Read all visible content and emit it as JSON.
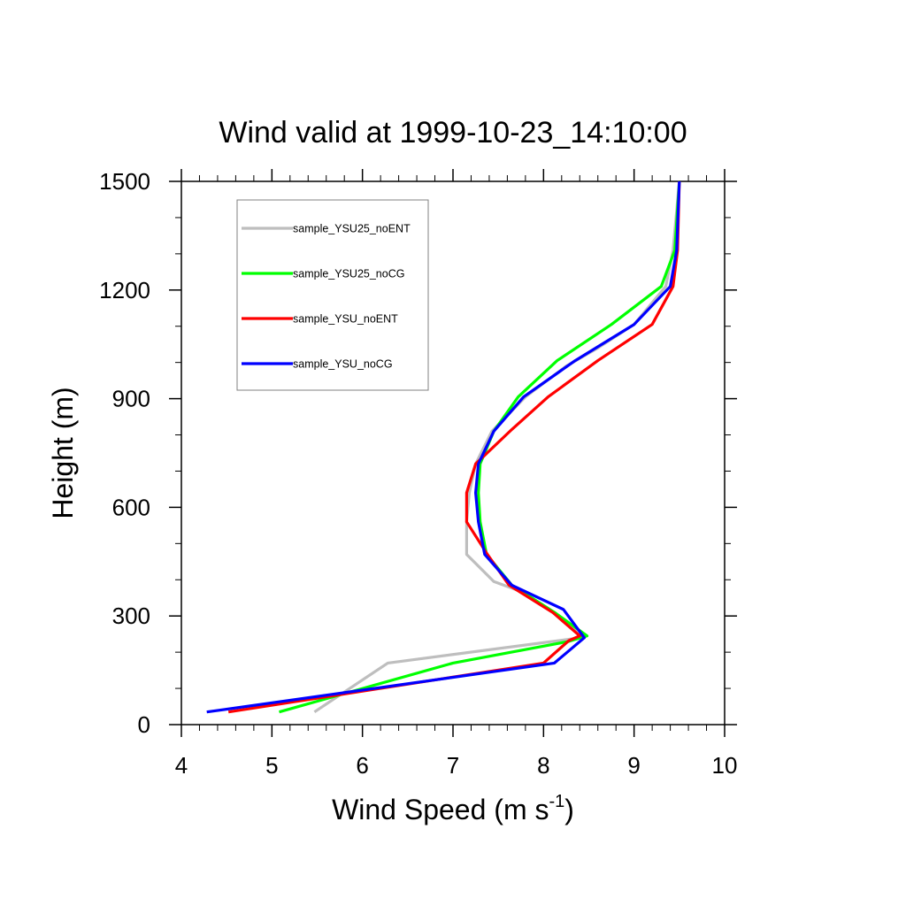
{
  "chart_data": {
    "type": "line",
    "title": "Wind valid at 1999-10-23_14:10:00",
    "xlabel_main": "Wind Speed (m s",
    "xlabel_sup": "-1",
    "xlabel_end": ")",
    "ylabel": "Height (m)",
    "xlim": [
      4,
      10
    ],
    "ylim": [
      0,
      1500
    ],
    "x_ticks": [
      "4",
      "5",
      "6",
      "7",
      "8",
      "9",
      "10"
    ],
    "y_ticks": [
      "0",
      "300",
      "600",
      "900",
      "1200",
      "1500"
    ],
    "legend_position": "top-left",
    "series": [
      {
        "name": "sample_YSU25_noENT",
        "color": "#bebebe",
        "points": [
          [
            5.47,
            35
          ],
          [
            6.28,
            170
          ],
          [
            8.35,
            238
          ],
          [
            8.45,
            245
          ],
          [
            8.1,
            310
          ],
          [
            7.78,
            365
          ],
          [
            7.45,
            395
          ],
          [
            7.15,
            470
          ],
          [
            7.15,
            560
          ],
          [
            7.18,
            640
          ],
          [
            7.25,
            720
          ],
          [
            7.43,
            810
          ],
          [
            7.8,
            905
          ],
          [
            8.25,
            990
          ],
          [
            8.6,
            1040
          ],
          [
            9.0,
            1105
          ],
          [
            9.35,
            1210
          ],
          [
            9.43,
            1310
          ],
          [
            9.5,
            1500
          ]
        ]
      },
      {
        "name": "sample_YSU25_noCG",
        "color": "#00ff00",
        "points": [
          [
            5.08,
            35
          ],
          [
            7.0,
            170
          ],
          [
            8.28,
            230
          ],
          [
            8.48,
            245
          ],
          [
            8.12,
            310
          ],
          [
            7.65,
            385
          ],
          [
            7.37,
            470
          ],
          [
            7.3,
            560
          ],
          [
            7.28,
            640
          ],
          [
            7.3,
            720
          ],
          [
            7.45,
            810
          ],
          [
            7.72,
            905
          ],
          [
            8.15,
            1005
          ],
          [
            8.75,
            1105
          ],
          [
            9.3,
            1210
          ],
          [
            9.45,
            1310
          ],
          [
            9.5,
            1500
          ]
        ]
      },
      {
        "name": "sample_YSU_noENT",
        "color": "#ff0000",
        "points": [
          [
            4.52,
            35
          ],
          [
            8.0,
            170
          ],
          [
            8.28,
            232
          ],
          [
            8.4,
            245
          ],
          [
            8.1,
            310
          ],
          [
            7.62,
            385
          ],
          [
            7.38,
            470
          ],
          [
            7.15,
            560
          ],
          [
            7.15,
            640
          ],
          [
            7.25,
            720
          ],
          [
            7.65,
            815
          ],
          [
            8.05,
            905
          ],
          [
            8.6,
            1005
          ],
          [
            9.2,
            1105
          ],
          [
            9.43,
            1210
          ],
          [
            9.48,
            1310
          ],
          [
            9.5,
            1500
          ]
        ]
      },
      {
        "name": "sample_YSU_noCG",
        "color": "#0000ff",
        "points": [
          [
            4.28,
            35
          ],
          [
            8.12,
            170
          ],
          [
            8.45,
            240
          ],
          [
            8.22,
            318
          ],
          [
            7.65,
            385
          ],
          [
            7.35,
            470
          ],
          [
            7.28,
            560
          ],
          [
            7.25,
            640
          ],
          [
            7.28,
            720
          ],
          [
            7.45,
            810
          ],
          [
            7.78,
            905
          ],
          [
            8.35,
            1005
          ],
          [
            9.0,
            1105
          ],
          [
            9.4,
            1210
          ],
          [
            9.47,
            1310
          ],
          [
            9.5,
            1500
          ]
        ]
      }
    ]
  }
}
